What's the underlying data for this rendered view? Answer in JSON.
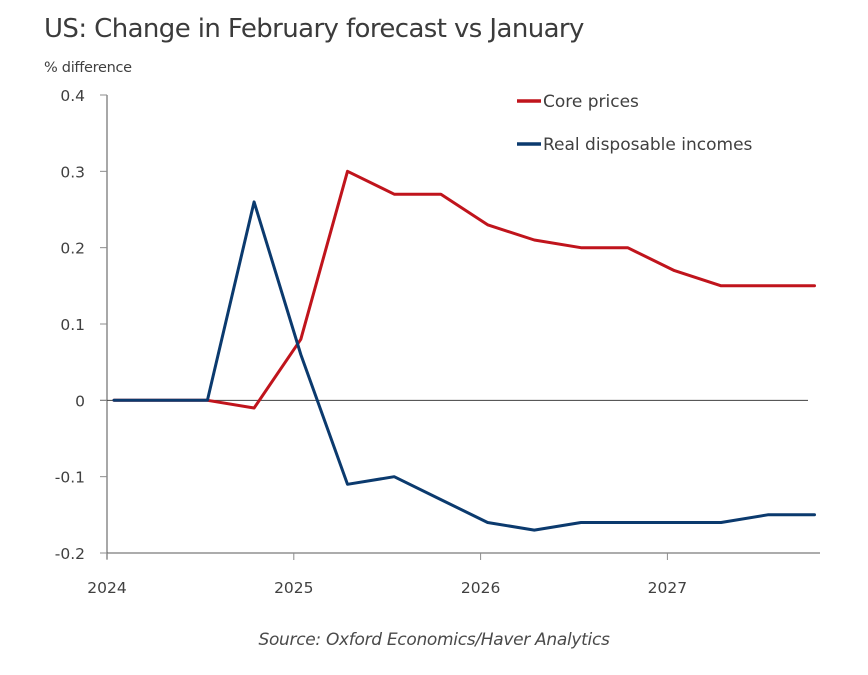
{
  "chart_data": {
    "type": "line",
    "title": "US: Change in February forecast vs January",
    "ylabel": "% difference",
    "xlabel": "",
    "source": "Source: Oxford Economics/Haver Analytics",
    "x": [
      "2024Q1",
      "2024Q2",
      "2024Q3",
      "2024Q4",
      "2025Q1",
      "2025Q2",
      "2025Q3",
      "2025Q4",
      "2026Q1",
      "2026Q2",
      "2026Q3",
      "2026Q4",
      "2027Q1",
      "2027Q2",
      "2027Q3",
      "2027Q4"
    ],
    "x_tick_labels": [
      "2024",
      "2025",
      "2026",
      "2027"
    ],
    "y_tick_labels": [
      "0.4",
      "0.3",
      "0.2",
      "0.1",
      "0",
      "-0.1",
      "-0.2"
    ],
    "y_ticks": [
      0.4,
      0.3,
      0.2,
      0.1,
      0,
      -0.1,
      -0.2
    ],
    "ylim": [
      -0.2,
      0.4
    ],
    "grid": false,
    "legend_position": "top-right",
    "series": [
      {
        "name": "Core prices",
        "color": "#c0141c",
        "values": [
          0,
          0,
          0,
          -0.01,
          0.08,
          0.3,
          0.27,
          0.27,
          0.23,
          0.21,
          0.2,
          0.2,
          0.17,
          0.15,
          0.15,
          0.15
        ]
      },
      {
        "name": "Real disposable incomes",
        "color": "#0b3a6e",
        "values": [
          0,
          0,
          0,
          0.26,
          0.06,
          -0.11,
          -0.1,
          -0.13,
          -0.16,
          -0.17,
          -0.16,
          -0.16,
          -0.16,
          -0.16,
          -0.15,
          -0.15
        ]
      }
    ]
  }
}
